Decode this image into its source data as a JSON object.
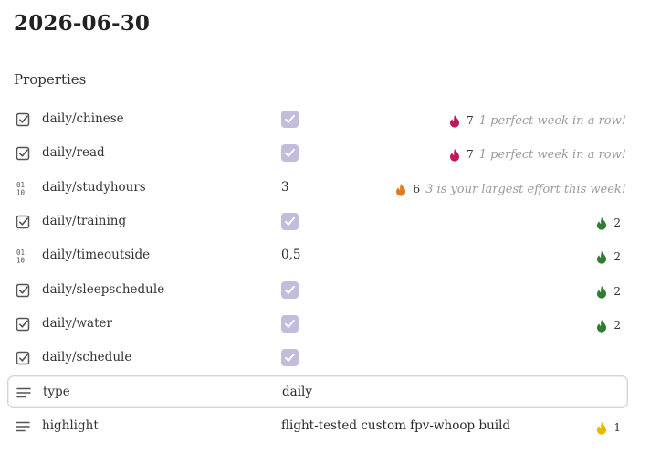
{
  "page": {
    "title": "2026-06-30",
    "section_heading": "Properties"
  },
  "properties": [
    {
      "name": "daily/chinese",
      "type": "checkbox",
      "type_icon": "checkbox-icon",
      "checked": true,
      "value": "",
      "streak": {
        "count": "7",
        "message": "1 perfect week in a row!",
        "color": "#c2185b"
      }
    },
    {
      "name": "daily/read",
      "type": "checkbox",
      "type_icon": "checkbox-icon",
      "checked": true,
      "value": "",
      "streak": {
        "count": "7",
        "message": "1 perfect week in a row!",
        "color": "#c2185b"
      }
    },
    {
      "name": "daily/studyhours",
      "type": "number",
      "type_icon": "number-icon",
      "value": "3",
      "streak": {
        "count": "6",
        "message": "3 is your largest effort this week!",
        "color": "#e07b20"
      }
    },
    {
      "name": "daily/training",
      "type": "checkbox",
      "type_icon": "checkbox-icon",
      "checked": true,
      "value": "",
      "streak": {
        "count": "2",
        "message": "",
        "color": "#2e7d32"
      }
    },
    {
      "name": "daily/timeoutside",
      "type": "number",
      "type_icon": "number-icon",
      "value": "0,5",
      "streak": {
        "count": "2",
        "message": "",
        "color": "#2e7d32"
      }
    },
    {
      "name": "daily/sleepschedule",
      "type": "checkbox",
      "type_icon": "checkbox-icon",
      "checked": true,
      "value": "",
      "streak": {
        "count": "2",
        "message": "",
        "color": "#2e7d32"
      }
    },
    {
      "name": "daily/water",
      "type": "checkbox",
      "type_icon": "checkbox-icon",
      "checked": true,
      "value": "",
      "streak": {
        "count": "2",
        "message": "",
        "color": "#2e7d32"
      }
    },
    {
      "name": "daily/schedule",
      "type": "checkbox",
      "type_icon": "checkbox-icon",
      "checked": true,
      "value": ""
    },
    {
      "name": "type",
      "type": "text",
      "type_icon": "text-lines-icon",
      "value": "daily",
      "focused": true
    },
    {
      "name": "highlight",
      "type": "text",
      "type_icon": "text-lines-icon",
      "value": "flight-tested custom fpv-whoop build",
      "streak": {
        "count": "1",
        "message": "",
        "color": "#e6b800"
      }
    }
  ]
}
